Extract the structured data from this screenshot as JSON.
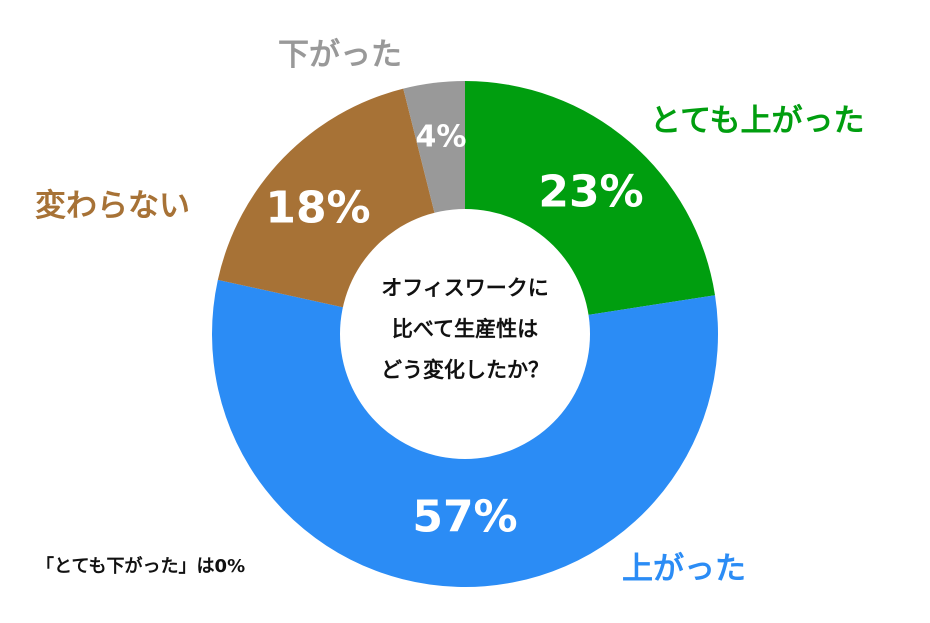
{
  "chart_data": {
    "type": "pie",
    "title": "オフィスワークに比べて生産性はどう変化したか？",
    "title_lines": [
      "オフィスワークに",
      "比べて生産性は",
      "どう変化したか？"
    ],
    "slices": [
      {
        "label": "とても上がった",
        "value": 23,
        "value_label": "23%",
        "color": "#009e0f"
      },
      {
        "label": "上がった",
        "value": 57,
        "value_label": "57%",
        "color": "#2b8cf5"
      },
      {
        "label": "変わらない",
        "value": 18,
        "value_label": "18%",
        "color": "#a77236"
      },
      {
        "label": "下がった",
        "value": 4,
        "value_label": "4%",
        "color": "#999999"
      }
    ],
    "note": "「とても下がった」は0%"
  }
}
